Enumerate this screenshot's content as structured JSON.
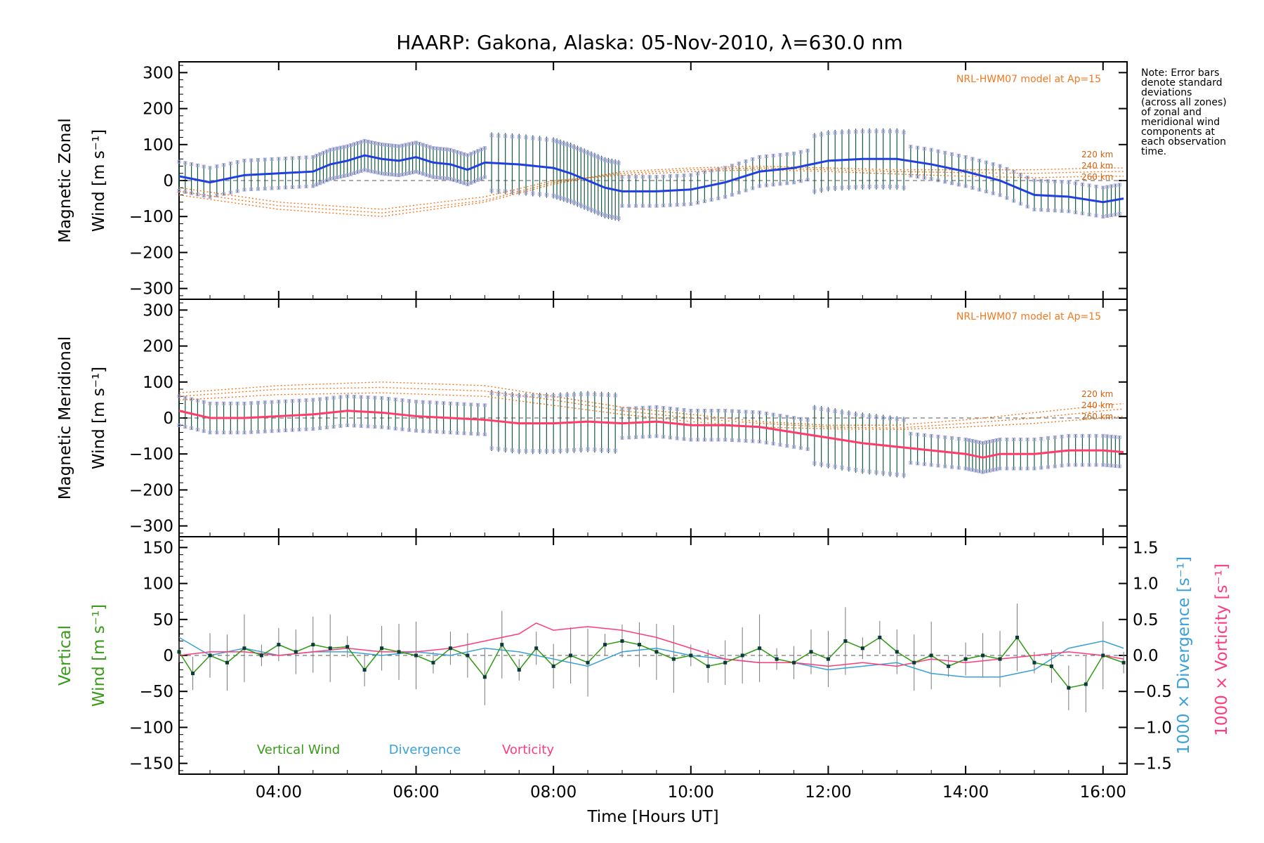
{
  "title": "HAARP: Gakona,  Alaska: 05-Nov-2010, λ=630.0 nm",
  "note_lines": [
    "Note: Error bars",
    "denote standard",
    "deviations",
    "(across all zones)",
    "of zonal and",
    "meridional wind",
    "components at",
    "each observation",
    "time."
  ],
  "colors": {
    "zonal": "#1f3fe0",
    "meridional": "#ff3b6b",
    "vertical": "#2f9a12",
    "divergence": "#3aa0d8",
    "vorticity": "#ff3b7a",
    "model": "#f07820",
    "zones": "#a9a2ea",
    "errbar": "#145a40"
  },
  "chart_data": [
    {
      "type": "line",
      "panel": "zonal",
      "ylabel_line1": "Magnetic Zonal",
      "ylabel_line2": "Wind [m s⁻¹]",
      "model_label": "NRL-HWM07 model at Ap=15",
      "model_altitudes": [
        "220 km",
        "240 km",
        "260 km"
      ],
      "ylim": [
        -330,
        330
      ],
      "yticks": [
        "300",
        "200",
        "100",
        "0",
        "−100",
        "−200",
        "−300"
      ],
      "series": [
        {
          "x": [
            2.55,
            3.0,
            3.5,
            4.0,
            4.5,
            4.75,
            5.0,
            5.25,
            5.5,
            5.75,
            6.0,
            6.25,
            6.5,
            6.75,
            7.0,
            7.5,
            8.0,
            8.25,
            8.5,
            8.75,
            9.0,
            9.5,
            10.0,
            10.5,
            11.0,
            11.5,
            12.0,
            12.5,
            13.0,
            13.5,
            14.0,
            14.5,
            15.0,
            15.5,
            16.0,
            16.3
          ],
          "y": [
            12,
            -5,
            15,
            20,
            25,
            45,
            55,
            70,
            60,
            55,
            65,
            50,
            45,
            30,
            50,
            45,
            35,
            20,
            0,
            -20,
            -30,
            -30,
            -25,
            -5,
            25,
            35,
            55,
            60,
            60,
            45,
            25,
            0,
            -40,
            -45,
            -60,
            -50
          ]
        }
      ],
      "model": [
        {
          "name": "220 km",
          "x": [
            2.55,
            4.0,
            5.5,
            7.0,
            8.0,
            9.0,
            10.0,
            11.0,
            12.0,
            13.0,
            14.0,
            15.0,
            16.0,
            16.3
          ],
          "y": [
            -40,
            -80,
            -100,
            -60,
            -10,
            25,
            35,
            40,
            35,
            30,
            30,
            30,
            35,
            35
          ]
        },
        {
          "name": "240 km",
          "x": [
            2.55,
            4.0,
            5.5,
            7.0,
            8.0,
            9.0,
            10.0,
            11.0,
            12.0,
            13.0,
            14.0,
            15.0,
            16.0,
            16.3
          ],
          "y": [
            -30,
            -70,
            -90,
            -55,
            -5,
            20,
            30,
            35,
            30,
            25,
            22,
            20,
            25,
            25
          ]
        },
        {
          "name": "260 km",
          "x": [
            2.55,
            4.0,
            5.5,
            7.0,
            8.0,
            9.0,
            10.0,
            11.0,
            12.0,
            13.0,
            14.0,
            15.0,
            16.0,
            16.3
          ],
          "y": [
            -20,
            -60,
            -80,
            -45,
            0,
            15,
            25,
            30,
            25,
            18,
            12,
            8,
            12,
            12
          ]
        }
      ]
    },
    {
      "type": "line",
      "panel": "meridional",
      "ylabel_line1": "Magnetic Meridional",
      "ylabel_line2": "Wind [m s⁻¹]",
      "model_label": "NRL-HWM07 model at Ap=15",
      "model_altitudes": [
        "220 km",
        "240 km",
        "260 km"
      ],
      "ylim": [
        -330,
        330
      ],
      "yticks": [
        "300",
        "200",
        "100",
        "0",
        "−100",
        "−200",
        "−300"
      ],
      "series": [
        {
          "x": [
            2.55,
            3.0,
            3.5,
            4.0,
            4.5,
            5.0,
            5.5,
            6.0,
            6.5,
            7.0,
            7.5,
            8.0,
            8.5,
            9.0,
            9.5,
            10.0,
            10.5,
            11.0,
            11.5,
            12.0,
            12.5,
            13.0,
            13.5,
            14.0,
            14.25,
            14.5,
            15.0,
            15.5,
            16.0,
            16.3
          ],
          "y": [
            20,
            0,
            0,
            5,
            10,
            20,
            15,
            5,
            0,
            -5,
            -15,
            -15,
            -10,
            -15,
            -10,
            -20,
            -20,
            -25,
            -40,
            -55,
            -70,
            -80,
            -90,
            -100,
            -110,
            -100,
            -100,
            -90,
            -90,
            -95
          ]
        }
      ],
      "model": [
        {
          "name": "220 km",
          "x": [
            2.55,
            4.0,
            5.5,
            7.0,
            8.0,
            9.0,
            10.0,
            11.0,
            12.0,
            13.0,
            14.0,
            15.0,
            16.0,
            16.3
          ],
          "y": [
            70,
            90,
            100,
            90,
            60,
            30,
            10,
            -10,
            -20,
            -20,
            -5,
            15,
            35,
            40
          ]
        },
        {
          "name": "240 km",
          "x": [
            2.55,
            4.0,
            5.5,
            7.0,
            8.0,
            9.0,
            10.0,
            11.0,
            12.0,
            13.0,
            14.0,
            15.0,
            16.0,
            16.3
          ],
          "y": [
            60,
            80,
            85,
            75,
            50,
            20,
            0,
            -15,
            -25,
            -28,
            -15,
            0,
            20,
            25
          ]
        },
        {
          "name": "260 km",
          "x": [
            2.55,
            4.0,
            5.5,
            7.0,
            8.0,
            9.0,
            10.0,
            11.0,
            12.0,
            13.0,
            14.0,
            15.0,
            16.0,
            16.3
          ],
          "y": [
            50,
            65,
            70,
            60,
            35,
            10,
            -10,
            -25,
            -30,
            -32,
            -25,
            -15,
            0,
            5
          ]
        }
      ]
    },
    {
      "type": "line",
      "panel": "vertical",
      "ylabel_line1": "Vertical",
      "ylabel_line2": "Wind [m s⁻¹]",
      "ylabel_right1": "1000 × Divergence [s⁻¹]",
      "ylabel_right2": "1000 × Vorticity [s⁻¹]",
      "ylim": [
        -165,
        165
      ],
      "yticks": [
        "150",
        "100",
        "50",
        "0",
        "−50",
        "−100",
        "−150"
      ],
      "y2lim": [
        -1.65,
        1.65
      ],
      "y2ticks": [
        "1.5",
        "1.0",
        "0.5",
        "0.0",
        "−0.5",
        "−1.0",
        "−1.5"
      ],
      "legend": [
        "Vertical Wind",
        "Divergence",
        "Vorticity"
      ],
      "xticks": [
        "04:00",
        "06:00",
        "08:00",
        "10:00",
        "12:00",
        "14:00",
        "16:00"
      ],
      "xtick_values": [
        4,
        6,
        8,
        10,
        12,
        14,
        16
      ],
      "xlim": [
        2.55,
        16.35
      ],
      "xlabel": "Time [Hours UT]",
      "series": [
        {
          "name": "Vertical Wind",
          "x": [
            2.55,
            2.75,
            3.0,
            3.25,
            3.5,
            3.75,
            4.0,
            4.25,
            4.5,
            4.75,
            5.0,
            5.25,
            5.5,
            5.75,
            6.0,
            6.25,
            6.5,
            6.75,
            7.0,
            7.25,
            7.5,
            7.75,
            8.0,
            8.25,
            8.5,
            8.75,
            9.0,
            9.25,
            9.5,
            9.75,
            10.0,
            10.25,
            10.5,
            10.75,
            11.0,
            11.25,
            11.5,
            11.75,
            12.0,
            12.25,
            12.5,
            12.75,
            13.0,
            13.25,
            13.5,
            13.75,
            14.0,
            14.25,
            14.5,
            14.75,
            15.0,
            15.25,
            15.5,
            15.75,
            16.0,
            16.3
          ],
          "y": [
            5,
            -25,
            0,
            -10,
            10,
            0,
            15,
            5,
            15,
            10,
            12,
            -20,
            10,
            5,
            0,
            -10,
            10,
            0,
            -30,
            15,
            -20,
            10,
            -15,
            0,
            -10,
            15,
            20,
            15,
            5,
            -5,
            0,
            -15,
            -10,
            0,
            10,
            -5,
            -10,
            5,
            -5,
            20,
            10,
            25,
            5,
            -10,
            0,
            -15,
            -5,
            0,
            -5,
            25,
            -10,
            -15,
            -45,
            -40,
            0,
            -10
          ]
        },
        {
          "name": "Divergence",
          "x": [
            2.55,
            3.0,
            3.5,
            4.0,
            4.5,
            5.0,
            5.5,
            6.0,
            6.5,
            7.0,
            7.5,
            8.0,
            8.5,
            9.0,
            9.5,
            10.0,
            10.5,
            11.0,
            11.5,
            12.0,
            12.5,
            13.0,
            13.5,
            14.0,
            14.5,
            15.0,
            15.5,
            16.0,
            16.3
          ],
          "y": [
            0.25,
            0.0,
            0.1,
            0.0,
            0.05,
            0.05,
            0.0,
            0.05,
            0.0,
            0.1,
            0.05,
            -0.05,
            -0.15,
            0.05,
            0.1,
            0.0,
            -0.05,
            -0.1,
            -0.1,
            -0.2,
            -0.15,
            -0.1,
            -0.25,
            -0.3,
            -0.3,
            -0.2,
            0.1,
            0.2,
            0.1
          ]
        },
        {
          "name": "Vorticity",
          "x": [
            2.55,
            3.0,
            3.5,
            4.0,
            4.5,
            5.0,
            5.5,
            6.0,
            6.5,
            7.0,
            7.5,
            7.75,
            8.0,
            8.5,
            9.0,
            9.5,
            10.0,
            10.5,
            11.0,
            11.5,
            12.0,
            12.5,
            13.0,
            13.5,
            14.0,
            14.5,
            15.0,
            15.5,
            16.0,
            16.3
          ],
          "y": [
            0.0,
            0.05,
            0.05,
            0.0,
            0.05,
            0.1,
            0.05,
            0.05,
            0.1,
            0.2,
            0.3,
            0.45,
            0.35,
            0.4,
            0.35,
            0.25,
            0.1,
            -0.05,
            -0.1,
            -0.1,
            -0.15,
            -0.1,
            -0.15,
            -0.05,
            -0.1,
            -0.05,
            0.0,
            0.05,
            0.0,
            -0.05
          ]
        }
      ]
    }
  ]
}
